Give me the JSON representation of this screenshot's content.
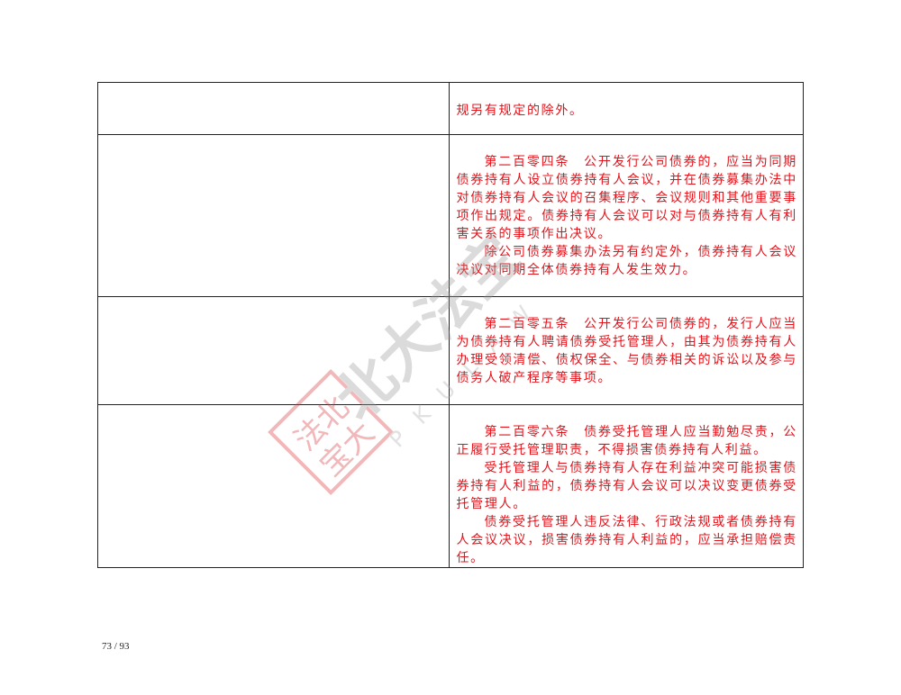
{
  "rows": [
    {
      "left": "",
      "paragraphs": [
        "规另有规定的除外。"
      ]
    },
    {
      "left": "",
      "paragraphs": [
        "第二百零四条　公开发行公司债券的，应当为同期债券持有人设立债券持有人会议，并在债券募集办法中对债券持有人会议的召集程序、会议规则和其他重要事项作出规定。债券持有人会议可以对与债券持有人有利害关系的事项作出决议。",
        "除公司债券募集办法另有约定外，债券持有人会议决议对同期全体债券持有人发生效力。"
      ]
    },
    {
      "left": "",
      "paragraphs": [
        "第二百零五条　公开发行公司债券的，发行人应当为债券持有人聘请债券受托管理人，由其为债券持有人办理受领清偿、债权保全、与债券相关的诉讼以及参与债务人破产程序等事项。"
      ]
    },
    {
      "left": "",
      "paragraphs": [
        "第二百零六条　债券受托管理人应当勤勉尽责，公正履行受托管理职责，不得损害债券持有人利益。",
        "受托管理人与债券持有人存在利益冲突可能损害债券持有人利益的，债券持有人会议可以决议变更债券受托管理人。",
        "债券受托管理人违反法律、行政法规或者债券持有人会议决议，损害债券持有人利益的，应当承担赔偿责任。"
      ]
    }
  ],
  "watermark": {
    "text": "北大法宝",
    "latin": "PKULAW",
    "seal": "法北宝大"
  },
  "page_number": "73 / 93",
  "colors": {
    "text_red": "#e3131b",
    "border": "#222222"
  }
}
